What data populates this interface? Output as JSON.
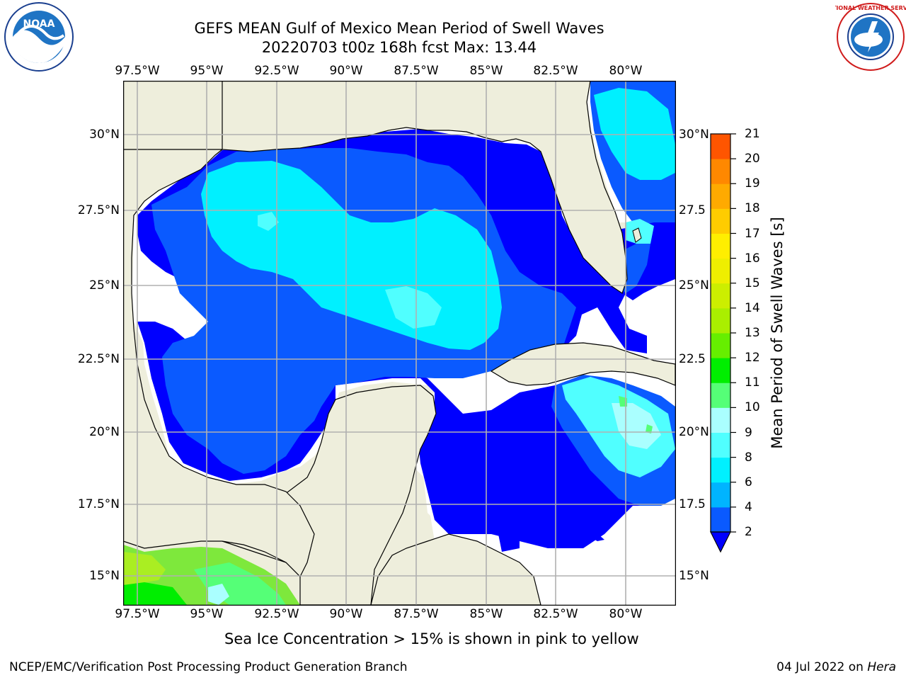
{
  "header": {
    "title_line1": "GEFS MEAN Gulf of Mexico Mean Period of Swell Waves",
    "title_line2": "20220703 t00z 168h fcst   Max: 13.44"
  },
  "logos": {
    "left": {
      "name": "noaa-logo",
      "text": "NOAA"
    },
    "right": {
      "name": "nws-logo",
      "text": "NATIONAL WEATHER SERVICE"
    }
  },
  "map": {
    "lon_ticks": [
      "97.5°W",
      "95°W",
      "92.5°W",
      "90°W",
      "87.5°W",
      "85°W",
      "82.5°W",
      "80°W"
    ],
    "lat_ticks_left": [
      "30°N",
      "27.5°N",
      "25°N",
      "22.5°N",
      "20°N",
      "17.5°N",
      "15°N"
    ],
    "lat_ticks_right": [
      "30°N",
      "27.5",
      "25°N",
      "22.5",
      "20°N",
      "17.5",
      "15°N"
    ],
    "colors": {
      "land": "#eeeedc",
      "ocean_nodata": "#ffffff",
      "grid": "#b0b0b0",
      "coast": "#000000"
    }
  },
  "colorbar": {
    "label": "Mean Period of Swell Waves [s]",
    "ticks": [
      "2",
      "4",
      "6",
      "8",
      "9",
      "10",
      "11",
      "12",
      "13",
      "14",
      "15",
      "16",
      "17",
      "18",
      "19",
      "20",
      "21"
    ],
    "colors": [
      "#0a5aff",
      "#00b4ff",
      "#00f0ff",
      "#50ffff",
      "#aaffff",
      "#55ff77",
      "#00ee00",
      "#66ee00",
      "#aaee00",
      "#ccee00",
      "#eeee00",
      "#ffee00",
      "#ffcc00",
      "#ffaa00",
      "#ff8800",
      "#ff5500",
      "#ff2200",
      "#ff0000"
    ],
    "under_color": "#0000ff"
  },
  "note": "Sea Ice Concentration > 15% is shown in pink to yellow",
  "footer": {
    "left": "NCEP/EMC/Verification Post Processing Product Generation Branch",
    "right_date": "04 Jul 2022 on ",
    "right_host": "Hera"
  }
}
